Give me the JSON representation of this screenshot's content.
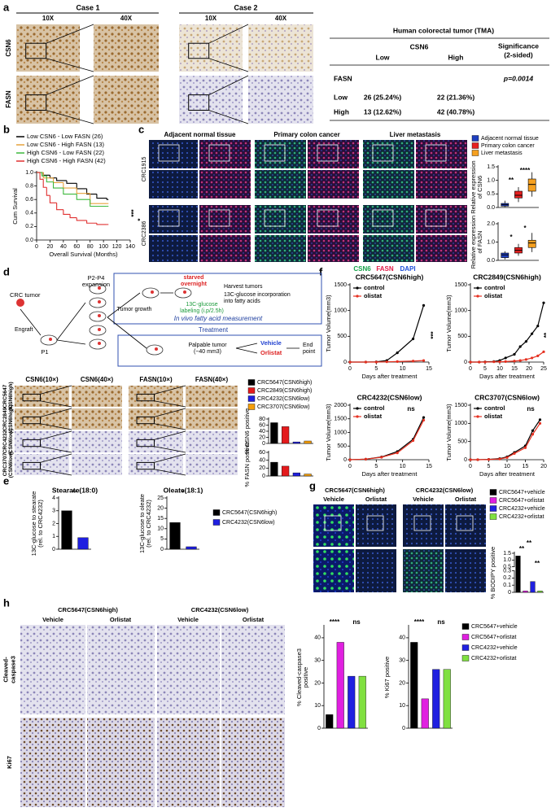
{
  "panel_labels": [
    "a",
    "b",
    "c",
    "d",
    "e",
    "f",
    "g",
    "h"
  ],
  "a": {
    "case1": "Case 1",
    "case2": "Case 2",
    "mag_low": "10X",
    "mag_high": "40X",
    "row1": "CSN6",
    "row2": "FASN",
    "table": {
      "title": "Human colorectal tumor (TMA)",
      "group": "CSN6",
      "low": "Low",
      "high": "High",
      "significance": [
        "Significance",
        "(2-sided)"
      ],
      "factor": "FASN",
      "p": "p=0.0014",
      "rows": [
        [
          "Low",
          "26 (25.24%)",
          "22 (21.36%)"
        ],
        [
          "High",
          "13 (12.62%)",
          "42 (40.78%)"
        ]
      ]
    }
  },
  "c": {
    "columns": [
      "Adjacent normal tissue",
      "Primary colon cancer",
      "Liver metastasis"
    ],
    "rows": [
      "CRC1915",
      "CRC2386"
    ],
    "stains": [
      {
        "name": "CSN6",
        "color": "#16a34a"
      },
      {
        "name": "FASN",
        "color": "#e11d48"
      },
      {
        "name": "DAPI",
        "color": "#1d4ed8"
      }
    ],
    "legend": [
      {
        "name": "Adjacent normal tissue",
        "color": "#1f3fbf"
      },
      {
        "name": "Primary colon cancer",
        "color": "#e62020"
      },
      {
        "name": "Liver metastasis",
        "color": "#f5a020"
      }
    ]
  },
  "d": {
    "schematic": {
      "tumor": "CRC tumor",
      "engraft": "Engraft",
      "p1": "P1",
      "expansion": [
        "P2-P4",
        "expansion"
      ],
      "growth": "Tumor growth",
      "starved": [
        "starved",
        "overnight"
      ],
      "harvest": "Harvest tumors",
      "incorporation": [
        "13C-glucose incorporation",
        "into fatty acids"
      ],
      "labeling": [
        "13C-glucose",
        "labeling (i.p/2.5h)"
      ],
      "measurement": "In vivo fatty acid measurement",
      "treatment": "Treatment",
      "palpable": [
        "Palpable tumor",
        "(~40 mm3)"
      ],
      "vehicle": "Vehicle",
      "orlistat": "Orlistat",
      "end": [
        "End",
        "point"
      ]
    },
    "columns": [
      "CSN6(10×)",
      "CSN6(40×)",
      "FASN(10×)",
      "FASN(40×)"
    ],
    "rows": [
      [
        "CRC5647",
        "(CSN6high)"
      ],
      [
        "CRC2849",
        "(CSN6high)"
      ],
      [
        "CRC4232",
        "(CSN6low)"
      ],
      [
        "CRC3707",
        "(CSN6low)"
      ]
    ],
    "legend": [
      {
        "name": "CRC5647(CSN6high)",
        "color": "#000000"
      },
      {
        "name": "CRC2849(CSN6high)",
        "color": "#e41a1c"
      },
      {
        "name": "CRC4232(CSN6low)",
        "color": "#1f1fe0"
      },
      {
        "name": "CRC3707(CSN6low)",
        "color": "#f59e0b"
      }
    ]
  },
  "e": {
    "legend": [
      {
        "name": "CRC5647(CSN6high)",
        "color": "#000000"
      },
      {
        "name": "CRC4232(CSN6low)",
        "color": "#1f1fe0"
      }
    ]
  },
  "g": {
    "groups": [
      "CRC5647(CSN6high)",
      "CRC4232(CSN6low)"
    ],
    "treatments": [
      "Vehicle",
      "Orlistat"
    ],
    "legend": [
      {
        "name": "CRC5647+vehicle",
        "color": "#000000"
      },
      {
        "name": "CRC5647+orlistat",
        "color": "#e020e0"
      },
      {
        "name": "CRC4232+vehicle",
        "color": "#2020e0"
      },
      {
        "name": "CRC4232+orlistat",
        "color": "#80e040"
      }
    ]
  },
  "h": {
    "groups": [
      "CRC5647(CSN6high)",
      "CRC4232(CSN6low)"
    ],
    "treatments": [
      "Vehicle",
      "Orlistat"
    ],
    "rows": [
      [
        "Cleaved-",
        "caspase3"
      ],
      [
        "Ki67"
      ]
    ],
    "legend": [
      {
        "name": "CRC5647+vehicle",
        "color": "#000000"
      },
      {
        "name": "CRC5647+orlistat",
        "color": "#e020e0"
      },
      {
        "name": "CRC4232+vehicle",
        "color": "#2020e0"
      },
      {
        "name": "CRC4232+orlistat",
        "color": "#80e040"
      }
    ]
  },
  "chart_data": [
    {
      "type": "line",
      "step": true,
      "xlabel": "Overall Survival (Months)",
      "ylabel": "Cum Survival",
      "xlim": [
        0,
        140
      ],
      "ylim": [
        0,
        1
      ],
      "xticks": [
        0,
        20,
        40,
        60,
        80,
        100,
        120,
        140
      ],
      "yticks": [
        {
          "value": 0,
          "label": "0.0"
        },
        {
          "value": 0.2,
          "label": "0.2"
        },
        {
          "value": 0.4,
          "label": "0.4"
        },
        {
          "value": 0.6,
          "label": "0.6"
        },
        {
          "value": 0.8,
          "label": "0.8"
        },
        {
          "value": 1,
          "label": "1.0"
        }
      ],
      "series": [
        {
          "name": "Low CSN6 - Low FASN (26)",
          "color": "#000000",
          "x": [
            0,
            10,
            20,
            30,
            45,
            60,
            75,
            90,
            105
          ],
          "values": [
            1,
            0.96,
            0.92,
            0.88,
            0.84,
            0.76,
            0.68,
            0.62,
            0.6
          ]
        },
        {
          "name": "Low CSN6 - High FASN (13)",
          "color": "#e6a23c",
          "x": [
            0,
            10,
            25,
            40,
            60,
            80,
            105
          ],
          "values": [
            1,
            0.92,
            0.85,
            0.77,
            0.69,
            0.54,
            0.54
          ]
        },
        {
          "name": "High CSN6 - Low FASN (22)",
          "color": "#3cb83c",
          "x": [
            0,
            8,
            15,
            25,
            40,
            60,
            80,
            105
          ],
          "values": [
            1,
            0.95,
            0.86,
            0.77,
            0.68,
            0.6,
            0.5,
            0.5
          ]
        },
        {
          "name": "High CSN6 - High FASN (42)",
          "color": "#e03030",
          "x": [
            0,
            5,
            10,
            15,
            20,
            30,
            40,
            50,
            60,
            75,
            90,
            105
          ],
          "values": [
            1,
            0.9,
            0.78,
            0.66,
            0.55,
            0.45,
            0.38,
            0.33,
            0.29,
            0.25,
            0.23,
            0.23
          ]
        }
      ],
      "annotations": [
        "***",
        "*"
      ]
    },
    {
      "type": "box",
      "ylabel": [
        "Relative expression",
        "of CSN6"
      ],
      "ylim": [
        0,
        1.5
      ],
      "yticks": [
        {
          "value": 0,
          "label": "0.0"
        },
        {
          "value": 0.5,
          "label": "0.5"
        },
        {
          "value": 1,
          "label": "1.0"
        },
        {
          "value": 1.5,
          "label": "1.5"
        }
      ],
      "colors": [
        "#1f3fbf",
        "#e62020",
        "#f5a020"
      ],
      "boxes": [
        [
          0.02,
          0.05,
          0.1,
          0.15,
          0.25
        ],
        [
          0.2,
          0.35,
          0.45,
          0.6,
          0.75
        ],
        [
          0.4,
          0.6,
          0.85,
          1.05,
          1.3
        ]
      ],
      "annotations": [
        "**",
        "****"
      ]
    },
    {
      "type": "box",
      "ylabel": [
        "Relative expression",
        "of FASN"
      ],
      "ylim": [
        0,
        2
      ],
      "yticks": [
        {
          "value": 0,
          "label": "0.0"
        },
        {
          "value": 1,
          "label": "1.0"
        },
        {
          "value": 2,
          "label": "2.0"
        }
      ],
      "colors": [
        "#1f3fbf",
        "#e62020",
        "#f5a020"
      ],
      "boxes": [
        [
          0.05,
          0.15,
          0.3,
          0.4,
          0.5
        ],
        [
          0.25,
          0.4,
          0.55,
          0.7,
          0.9
        ],
        [
          0.45,
          0.7,
          0.95,
          1.1,
          1.5
        ]
      ],
      "annotations": [
        "*",
        "*"
      ]
    },
    {
      "type": "bar",
      "ylabel": "% CSN6 positive",
      "ylim": [
        0,
        80
      ],
      "yticks": [
        0,
        20,
        40,
        60,
        80
      ],
      "values": [
        68,
        55,
        5,
        8
      ],
      "colors": [
        "#000000",
        "#e41a1c",
        "#1f1fe0",
        "#f59e0b"
      ]
    },
    {
      "type": "bar",
      "ylabel": "% FASN positive",
      "ylim": [
        0,
        60
      ],
      "yticks": [
        0,
        20,
        40,
        60
      ],
      "values": [
        35,
        25,
        8,
        5
      ],
      "colors": [
        "#000000",
        "#e41a1c",
        "#1f1fe0",
        "#f59e0b"
      ]
    },
    {
      "type": "bar",
      "title": "Stearate(18:0)",
      "ylabel": [
        "13C-glucose to stearate",
        "(rel. to CRC4232)"
      ],
      "ylim": [
        0,
        4
      ],
      "yticks": [
        0,
        1,
        2,
        3,
        4
      ],
      "values": [
        3.0,
        0.9
      ],
      "colors": [
        "#000000",
        "#1f1fe0"
      ],
      "annotations": [
        "**"
      ]
    },
    {
      "type": "bar",
      "title": "Oleate(18:1)",
      "ylabel": [
        "13C-glucose to oleate",
        "(rel. to CRC4232)"
      ],
      "ylim": [
        0,
        25
      ],
      "yticks": [
        0,
        5,
        10,
        15,
        20,
        25
      ],
      "values": [
        13,
        1.2
      ],
      "colors": [
        "#000000",
        "#1f1fe0"
      ],
      "annotations": [
        "*"
      ]
    },
    {
      "type": "line",
      "title": "CRC5647(CSN6high)",
      "xlabel": "Days after treatment",
      "ylabel": "Tumor Volume(mm3)",
      "x": [
        0,
        3,
        5,
        7,
        9,
        12,
        14
      ],
      "xlim": [
        0,
        15
      ],
      "xticks": [
        0,
        5,
        10,
        15
      ],
      "ylim": [
        0,
        1500
      ],
      "yticks": [
        0,
        500,
        1000,
        1500
      ],
      "series": [
        {
          "name": "control",
          "color": "#000000",
          "values": [
            0,
            0,
            5,
            30,
            180,
            450,
            1100
          ]
        },
        {
          "name": "olistat",
          "color": "#e53020",
          "values": [
            0,
            0,
            0,
            5,
            10,
            20,
            30
          ]
        }
      ],
      "annotations": [
        "***"
      ]
    },
    {
      "type": "line",
      "title": "CRC2849(CSN6high)",
      "xlabel": "Days after treatment",
      "ylabel": "Tumor Volume(mm3)",
      "x": [
        0,
        3,
        5,
        8,
        10,
        12,
        15,
        17,
        19,
        21,
        23,
        25
      ],
      "xlim": [
        0,
        25
      ],
      "xticks": [
        0,
        5,
        10,
        15,
        20,
        25
      ],
      "ylim": [
        0,
        1500
      ],
      "yticks": [
        0,
        500,
        1000,
        1500
      ],
      "series": [
        {
          "name": "control",
          "color": "#000000",
          "values": [
            0,
            0,
            5,
            10,
            30,
            80,
            150,
            300,
            400,
            550,
            700,
            1150
          ]
        },
        {
          "name": "olistat",
          "color": "#e53020",
          "values": [
            0,
            0,
            0,
            5,
            5,
            10,
            20,
            30,
            50,
            80,
            120,
            200
          ]
        }
      ],
      "annotations": [
        "**"
      ]
    },
    {
      "type": "line",
      "title": "CRC4232(CSN6low)",
      "xlabel": "Days after treatment",
      "ylabel": "Tumor Volume(mm3)",
      "x": [
        0,
        3,
        6,
        9,
        12,
        14
      ],
      "xlim": [
        0,
        15
      ],
      "xticks": [
        0,
        5,
        10,
        15
      ],
      "ylim": [
        0,
        2000
      ],
      "yticks": [
        0,
        500,
        1000,
        1500,
        2000
      ],
      "series": [
        {
          "name": "control",
          "color": "#000000",
          "values": [
            0,
            20,
            100,
            300,
            750,
            1550
          ]
        },
        {
          "name": "olistat",
          "color": "#e53020",
          "values": [
            0,
            20,
            90,
            250,
            700,
            1450
          ]
        }
      ],
      "annotations": [
        "ns"
      ]
    },
    {
      "type": "line",
      "title": "CRC3707(CSN6low)",
      "xlabel": "Days after treatment",
      "ylabel": "Tumor Volume(mm3)",
      "x": [
        0,
        2,
        5,
        8,
        10,
        12,
        15,
        17,
        19
      ],
      "xlim": [
        0,
        20
      ],
      "xticks": [
        0,
        5,
        10,
        15,
        20
      ],
      "ylim": [
        0,
        1500
      ],
      "yticks": [
        0,
        500,
        1000,
        1500
      ],
      "series": [
        {
          "name": "control",
          "color": "#000000",
          "values": [
            0,
            0,
            10,
            30,
            80,
            200,
            380,
            800,
            1100
          ]
        },
        {
          "name": "olistat",
          "color": "#e53020",
          "values": [
            0,
            0,
            5,
            20,
            60,
            170,
            330,
            700,
            1000
          ]
        }
      ],
      "annotations": [
        "ns"
      ]
    },
    {
      "type": "bar",
      "ylabel": "% BODIPY positive",
      "ylim": [
        0,
        1.5
      ],
      "ybreak": [
        0.3,
        0.5
      ],
      "yticks": [
        0,
        0.1,
        0.2,
        0.3,
        0.5,
        {
          "value": 1,
          "label": "1.0"
        },
        1.5
      ],
      "values": [
        1.3,
        0.02,
        0.15,
        0.02
      ],
      "colors": [
        "#000000",
        "#e020e0",
        "#2020e0",
        "#80e040"
      ],
      "annotations": [
        "**",
        "**",
        "**"
      ]
    },
    {
      "type": "bar",
      "ylabel": [
        "% Cleaved-caspase3",
        "positive"
      ],
      "ylim": [
        0,
        45
      ],
      "yticks": [
        0,
        10,
        20,
        30,
        40
      ],
      "values": [
        6,
        38,
        23,
        23
      ],
      "colors": [
        "#000000",
        "#e020e0",
        "#2020e0",
        "#80e040"
      ],
      "annotations": [
        "****",
        "ns"
      ]
    },
    {
      "type": "bar",
      "ylabel": "% Ki67 positive",
      "ylim": [
        0,
        45
      ],
      "yticks": [
        0,
        10,
        20,
        30,
        40
      ],
      "values": [
        38,
        13,
        26,
        26
      ],
      "colors": [
        "#000000",
        "#e020e0",
        "#2020e0",
        "#80e040"
      ],
      "annotations": [
        "****",
        "ns"
      ]
    }
  ]
}
